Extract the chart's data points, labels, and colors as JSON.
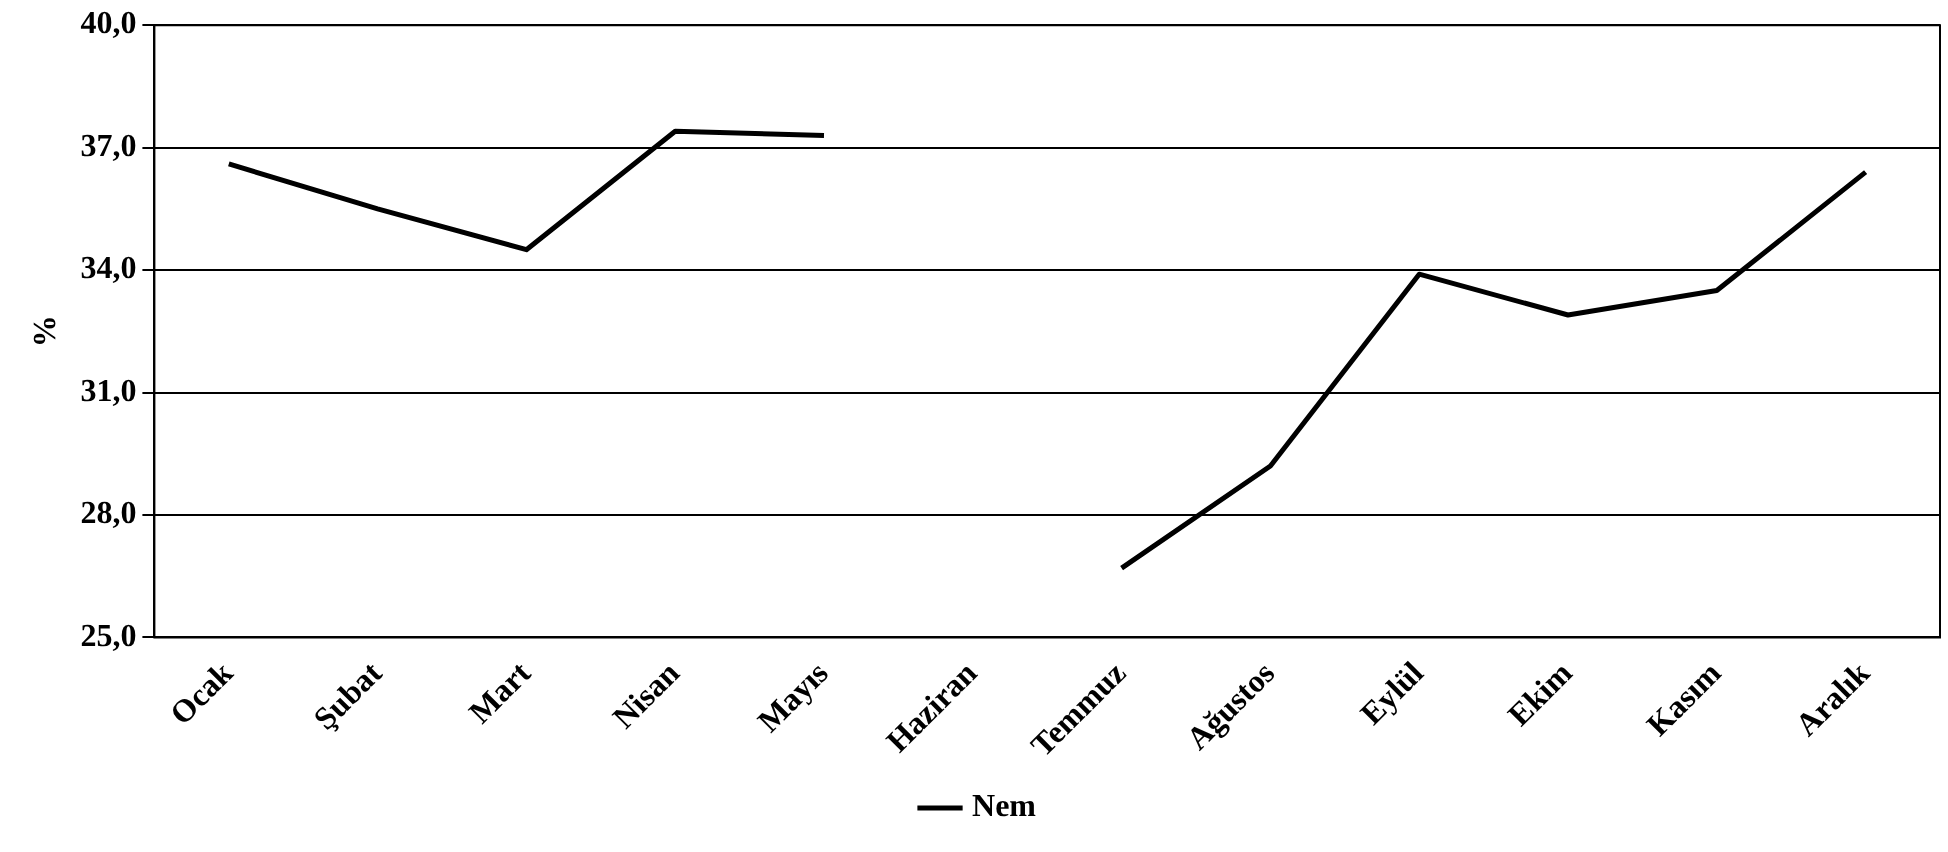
{
  "chart_data": {
    "type": "line",
    "ylabel": "%",
    "categories": [
      "Ocak",
      "Şubat",
      "Mart",
      "Nisan",
      "Mayıs",
      "Haziran",
      "Temmuz",
      "Ağustos",
      "Eylül",
      "Ekim",
      "Kasım",
      "Aralık"
    ],
    "series": [
      {
        "name": "Nem",
        "color": "#000000",
        "values": [
          36.6,
          35.5,
          34.5,
          37.4,
          37.3,
          null,
          26.7,
          29.2,
          33.9,
          32.9,
          33.5,
          36.4
        ]
      }
    ],
    "ylim": [
      25,
      40
    ],
    "yticks": [
      {
        "value": 25,
        "label": "25,0"
      },
      {
        "value": 28,
        "label": "28,0"
      },
      {
        "value": 31,
        "label": "31,0"
      },
      {
        "value": 34,
        "label": "34,0"
      },
      {
        "value": 37,
        "label": "37,0"
      },
      {
        "value": 40,
        "label": "40,0"
      }
    ],
    "grid": "y",
    "legend": "bottom",
    "marker": "none",
    "line_style": "solid"
  }
}
